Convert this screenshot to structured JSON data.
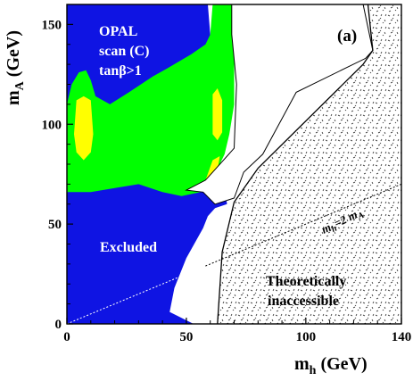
{
  "chart_data": {
    "type": "area",
    "panel_label": "(a)",
    "xlabel_main": "m",
    "xlabel_sub": "h",
    "xlabel_unit": " (GeV)",
    "ylabel_main": "m",
    "ylabel_sub": "A",
    "ylabel_unit": " (GeV)",
    "xlim": [
      0,
      140
    ],
    "ylim": [
      0,
      160
    ],
    "xticks": [
      0,
      50,
      100,
      140
    ],
    "yticks": [
      0,
      50,
      100,
      150
    ],
    "x_tick_labels": [
      "0",
      "50",
      "100",
      "140"
    ],
    "y_tick_labels": [
      "0",
      "50",
      "100",
      "150"
    ],
    "annotations": {
      "scan_line1": "OPAL",
      "scan_line2": "scan (C)",
      "scan_line3": "tanβ>1",
      "excluded": "Excluded",
      "theory_line1": "Theoretically",
      "theory_line2": "inaccessible",
      "relation_main": "m",
      "relation_sub_h": "h",
      "relation_eq": "=2 m",
      "relation_sub_a": "A"
    },
    "colors": {
      "excluded": "#0f14e3",
      "green": "#00ff00",
      "yellow": "#ffff00",
      "allowed": "#ffffff",
      "inaccessible": "#f2f2f2",
      "boundary": "#000000"
    },
    "regions": [
      {
        "name": "excluded",
        "fill": "#0f14e3",
        "points": [
          [
            0,
            0
          ],
          [
            0,
            160
          ],
          [
            59,
            160
          ],
          [
            61,
            130
          ],
          [
            63,
            85
          ],
          [
            64.5,
            74
          ],
          [
            66,
            69
          ],
          [
            67,
            60
          ],
          [
            62,
            58
          ],
          [
            59,
            54
          ],
          [
            57,
            48
          ],
          [
            50,
            33
          ],
          [
            45,
            18
          ],
          [
            43,
            6
          ],
          [
            53,
            0
          ]
        ]
      },
      {
        "name": "green",
        "fill": "#00ff00",
        "points": [
          [
            0,
            66
          ],
          [
            0,
            110
          ],
          [
            2,
            120
          ],
          [
            5,
            126
          ],
          [
            8,
            127
          ],
          [
            10,
            122
          ],
          [
            12,
            114
          ],
          [
            18,
            110
          ],
          [
            26,
            116
          ],
          [
            36,
            124
          ],
          [
            42,
            128
          ],
          [
            52,
            135
          ],
          [
            58,
            140
          ],
          [
            60,
            145
          ],
          [
            61,
            160
          ],
          [
            70,
            160
          ],
          [
            70,
            110
          ],
          [
            68,
            95
          ],
          [
            66,
            85
          ],
          [
            64,
            80
          ],
          [
            63,
            75
          ],
          [
            58,
            70
          ],
          [
            56,
            66
          ],
          [
            48,
            64
          ],
          [
            40,
            66
          ],
          [
            30,
            70
          ],
          [
            20,
            68
          ],
          [
            10,
            66
          ],
          [
            0,
            66
          ]
        ]
      },
      {
        "name": "yellow-left",
        "fill": "#ffff00",
        "points": [
          [
            4,
            86
          ],
          [
            3,
            95
          ],
          [
            4,
            112
          ],
          [
            7,
            114
          ],
          [
            10,
            112
          ],
          [
            11,
            95
          ],
          [
            10,
            86
          ],
          [
            7,
            82
          ]
        ]
      },
      {
        "name": "yellow-right",
        "fill": "#ffff00",
        "points": [
          [
            61,
            95
          ],
          [
            61,
            115
          ],
          [
            63,
            118
          ],
          [
            65,
            112
          ],
          [
            65,
            96
          ],
          [
            63,
            92
          ]
        ]
      },
      {
        "name": "yellow-wedge",
        "fill": "#ffff00",
        "points": [
          [
            58,
            72
          ],
          [
            63,
            77
          ],
          [
            64,
            84
          ],
          [
            61,
            82
          ]
        ]
      },
      {
        "name": "allowed",
        "fill": "#ffffff",
        "points": [
          [
            69,
            160
          ],
          [
            124,
            160
          ],
          [
            128,
            137
          ],
          [
            125,
            133
          ],
          [
            96,
            116
          ],
          [
            82,
            85
          ],
          [
            74,
            76
          ],
          [
            70,
            63
          ],
          [
            62,
            60
          ],
          [
            57,
            66
          ],
          [
            50,
            67
          ],
          [
            58,
            72
          ],
          [
            70,
            88
          ],
          [
            71,
            120
          ],
          [
            69,
            145
          ]
        ]
      },
      {
        "name": "inaccessible",
        "fill": "#f2f2f2",
        "points": [
          [
            126,
            160
          ],
          [
            140,
            160
          ],
          [
            140,
            0
          ],
          [
            63,
            0
          ],
          [
            65,
            36
          ],
          [
            70,
            61
          ],
          [
            80,
            78
          ],
          [
            124,
            130
          ],
          [
            128,
            137
          ]
        ]
      }
    ],
    "reference_lines": [
      {
        "name": "mh-equals-2mA",
        "points": [
          [
            0,
            0
          ],
          [
            140,
            70
          ]
        ]
      }
    ]
  }
}
